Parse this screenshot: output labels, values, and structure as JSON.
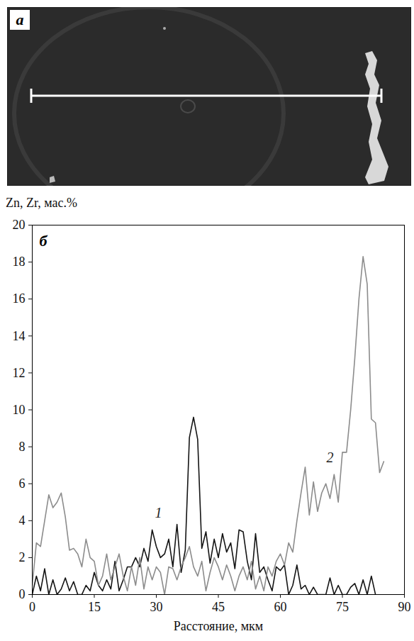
{
  "image_panel": {
    "label": "а"
  },
  "chart_data": {
    "type": "line",
    "panel_label": "б",
    "y_label": "Zn, Zr, мас.%",
    "x_label": "Расстояние, мкм",
    "x": [
      0,
      1,
      2,
      3,
      4,
      5,
      6,
      7,
      8,
      9,
      10,
      11,
      12,
      13,
      14,
      15,
      16,
      17,
      18,
      19,
      20,
      21,
      22,
      23,
      24,
      25,
      26,
      27,
      28,
      29,
      30,
      31,
      32,
      33,
      34,
      35,
      36,
      37,
      38,
      39,
      40,
      41,
      42,
      43,
      44,
      45,
      46,
      47,
      48,
      49,
      50,
      51,
      52,
      53,
      54,
      55,
      56,
      57,
      58,
      59,
      60,
      61,
      62,
      63,
      64,
      65,
      66,
      67,
      68,
      69,
      70,
      71,
      72,
      73,
      74,
      75,
      76,
      77,
      78,
      79,
      80,
      81,
      82,
      83,
      84,
      85
    ],
    "series": [
      {
        "color": "#141414",
        "values": [
          0,
          1,
          0.2,
          1.4,
          0,
          0.8,
          0,
          0.3,
          0.9,
          0.2,
          0.7,
          0,
          0,
          0.5,
          0.2,
          1.2,
          0.5,
          0.2,
          0.8,
          0.3,
          1.8,
          0.2,
          0.8,
          1.5,
          1.5,
          2,
          1.5,
          2.5,
          1.8,
          3.5,
          2.6,
          2,
          2.2,
          3,
          1.5,
          3.8,
          1.2,
          2.4,
          8.5,
          9.6,
          8.4,
          2.5,
          3.4,
          1.7,
          3,
          2,
          3.3,
          2.3,
          2.8,
          1.4,
          3.5,
          3.4,
          1.8,
          0.8,
          3.3,
          1.2,
          1.5,
          0.8,
          0.2,
          1.5,
          1.3,
          1.6,
          0,
          0.5,
          1.6,
          0.3,
          0.5,
          0,
          0.4,
          0,
          0,
          0,
          0.9,
          0,
          0.5,
          0,
          0,
          0.4,
          0.6,
          0,
          0.8,
          0,
          1,
          0,
          null,
          null
        ]
      },
      {
        "color": "#8c8c8c",
        "values": [
          0.5,
          2.8,
          2.6,
          4,
          5.4,
          4.7,
          5,
          5.5,
          4.2,
          2.4,
          2.5,
          2.2,
          1.5,
          3,
          2,
          1.8,
          0.5,
          1,
          2.2,
          0.8,
          1.5,
          2.2,
          1,
          0.2,
          1.5,
          0.5,
          2,
          0.3,
          1.5,
          0.8,
          1.5,
          1.2,
          0,
          1.5,
          1.4,
          0.8,
          1.5,
          2,
          2.6,
          1.5,
          1,
          1.8,
          0.2,
          1.2,
          2,
          1.5,
          0.8,
          1.6,
          1,
          0.2,
          1,
          1.5,
          0.8,
          1.8,
          0.3,
          1,
          0.2,
          1.5,
          1,
          1.8,
          2.2,
          1.6,
          2.8,
          2.3,
          4,
          5.5,
          6.9,
          4.3,
          6.1,
          4.5,
          5.5,
          6,
          5.2,
          6.5,
          5,
          7.7,
          7.7,
          10,
          12.8,
          16,
          18.3,
          16.8,
          9.5,
          9.3,
          6.6,
          7.2
        ]
      }
    ],
    "annotations": [
      {
        "text": "1",
        "x": 30.5,
        "y": 4.4
      },
      {
        "text": "2",
        "x": 72,
        "y": 7.4
      }
    ],
    "xlim": [
      0,
      90
    ],
    "xticks": [
      0,
      15,
      30,
      45,
      60,
      75,
      90
    ],
    "ylim": [
      0,
      20
    ],
    "yticks": [
      0,
      2,
      4,
      6,
      8,
      10,
      12,
      14,
      16,
      18,
      20
    ],
    "grid": false
  }
}
